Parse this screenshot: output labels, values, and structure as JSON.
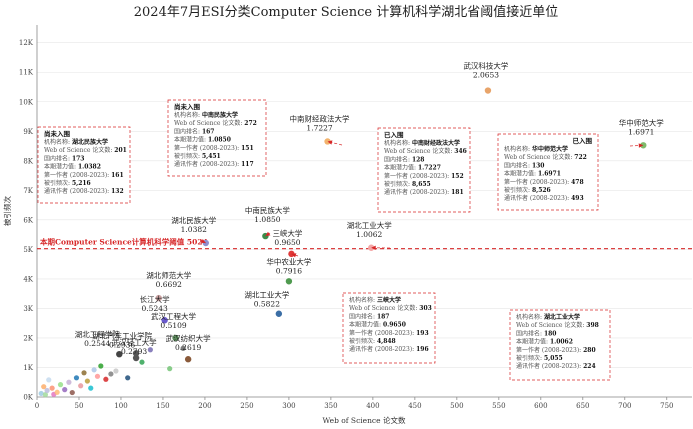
{
  "chart_data": {
    "type": "scatter",
    "title": "2024年7月ESI分类Computer Science 计算机科学湖北省阈值接近单位",
    "xlabel": "Web of Science 论文数",
    "ylabel": "被引频次",
    "xlim": [
      0,
      780
    ],
    "ylim": [
      0,
      12600
    ],
    "xticks": [
      0,
      50,
      100,
      150,
      200,
      250,
      300,
      350,
      400,
      450,
      500,
      550,
      600,
      650,
      700,
      750
    ],
    "yticks": [
      0,
      1000,
      2000,
      3000,
      4000,
      5000,
      6000,
      7000,
      8000,
      9000,
      10000,
      11000,
      12000
    ],
    "ytick_labels": [
      "0K",
      "1K",
      "2K",
      "3K",
      "4K",
      "5K",
      "6K",
      "7K",
      "8K",
      "9K",
      "10K",
      "11K",
      "12K"
    ],
    "threshold": {
      "value": 5024,
      "label": "本期Computer Science计算机科学阈值 5024"
    },
    "labeled_points": [
      {
        "name": "武汉科技大学",
        "ratio": "2.0653",
        "x": 537,
        "y": 10380,
        "color": "#e8a46a"
      },
      {
        "name": "华中师范大学",
        "ratio": "1.6971",
        "x": 722,
        "y": 8526,
        "color": "#7fba6b"
      },
      {
        "name": "中南财经政法大学",
        "ratio": "1.7227",
        "x": 346,
        "y": 8655,
        "color": "#f2b36d"
      },
      {
        "name": "中南民族大学",
        "ratio": "1.0850",
        "x": 272,
        "y": 5451,
        "color": "#3d8b4a"
      },
      {
        "name": "湖北民族大学",
        "ratio": "1.0382",
        "x": 201,
        "y": 5216,
        "color": "#8f8fcf"
      },
      {
        "name": "湖北工业大学",
        "ratio": "1.0062",
        "x": 398,
        "y": 5055,
        "color": "#f4a6a6"
      },
      {
        "name": "三峡大学",
        "ratio": "0.9650",
        "x": 303,
        "y": 4848,
        "color": "#e03a3a"
      },
      {
        "name": "华中农业大学",
        "ratio": "0.7916",
        "x": 300,
        "y": 3920,
        "color": "#4f9a4f"
      },
      {
        "name": "湖北师范大学",
        "ratio": "0.6692",
        "x": 145,
        "y": 3350,
        "color": "#c9a0a0"
      },
      {
        "name": "长江大学",
        "ratio": "0.5243",
        "x": 152,
        "y": 2600,
        "color": "#6a5acd"
      },
      {
        "name": "湖北工业大学",
        "ratio": "0.5822",
        "x": 288,
        "y": 2820,
        "color": "#3b6ea5"
      },
      {
        "name": "武汉工程大学",
        "ratio": "0.5109",
        "x": 165,
        "y": 2000,
        "color": "#5a8a5a"
      },
      {
        "name": "湖北汽车工业学院",
        "ratio": "0.2936",
        "x": 118,
        "y": 1480,
        "color": "#555555"
      },
      {
        "name": "武汉轻工大学",
        "ratio": "0.2793",
        "x": 118,
        "y": 1320,
        "color": "#555555"
      },
      {
        "name": "湖北工程学院",
        "ratio": "0.2544",
        "x": 98,
        "y": 1450,
        "color": "#444444"
      },
      {
        "name": "武汉纺织大学",
        "ratio": "0.2619",
        "x": 180,
        "y": 1280,
        "color": "#8a5a3a"
      }
    ],
    "minor_points": [
      {
        "x": 5,
        "y": 120,
        "color": "#9ecae1"
      },
      {
        "x": 8,
        "y": 350,
        "color": "#fdae6b"
      },
      {
        "x": 10,
        "y": 80,
        "color": "#a1d99b"
      },
      {
        "x": 12,
        "y": 220,
        "color": "#bcbddc"
      },
      {
        "x": 14,
        "y": 580,
        "color": "#c6dbef"
      },
      {
        "x": 18,
        "y": 300,
        "color": "#fc9272"
      },
      {
        "x": 20,
        "y": 90,
        "color": "#e377c2"
      },
      {
        "x": 24,
        "y": 160,
        "color": "#ffbb78"
      },
      {
        "x": 28,
        "y": 420,
        "color": "#98df8a"
      },
      {
        "x": 33,
        "y": 250,
        "color": "#9467bd"
      },
      {
        "x": 38,
        "y": 500,
        "color": "#c5b0d5"
      },
      {
        "x": 42,
        "y": 150,
        "color": "#8c564b"
      },
      {
        "x": 47,
        "y": 650,
        "color": "#1f77b4"
      },
      {
        "x": 52,
        "y": 380,
        "color": "#e7969c"
      },
      {
        "x": 56,
        "y": 820,
        "color": "#8c6d31"
      },
      {
        "x": 60,
        "y": 540,
        "color": "#bd9e39"
      },
      {
        "x": 64,
        "y": 300,
        "color": "#17becf"
      },
      {
        "x": 68,
        "y": 920,
        "color": "#aec7e8"
      },
      {
        "x": 72,
        "y": 700,
        "color": "#ff9896"
      },
      {
        "x": 76,
        "y": 1050,
        "color": "#2ca02c"
      },
      {
        "x": 82,
        "y": 600,
        "color": "#d62728"
      },
      {
        "x": 88,
        "y": 780,
        "color": "#7f7f7f"
      },
      {
        "x": 94,
        "y": 880,
        "color": "#c7c7c7"
      },
      {
        "x": 108,
        "y": 650,
        "color": "#1f4e79"
      },
      {
        "x": 125,
        "y": 1180,
        "color": "#31a354"
      },
      {
        "x": 135,
        "y": 1600,
        "color": "#756bb1"
      },
      {
        "x": 158,
        "y": 960,
        "color": "#74c476"
      },
      {
        "x": 174,
        "y": 1650,
        "color": "#636363"
      }
    ],
    "annotations": [
      {
        "status": "尚未入围",
        "name": "湖北民族大学",
        "papers": "201",
        "ratio": "1.0382",
        "citations": "5,216",
        "first_author": "161",
        "corresponding": "132",
        "labels": {
          "name": "机构名称: ",
          "papers": "Web of Science 论文数: ",
          "ratio": "国内排名: ",
          "potential": "本期潜力值: ",
          "first": "第一作者 (2008-2023): ",
          "cites": "被引频次: ",
          "corr": "通讯作者 (2008-2023): "
        },
        "rank": "173",
        "target": {
          "x": 201,
          "y": 5216
        }
      },
      {
        "status": "尚未入围",
        "name": "中南民族大学",
        "papers": "272",
        "ratio": "1.0850",
        "citations": "5,451",
        "first_author": "151",
        "corresponding": "117",
        "labels": {
          "name": "机构名称: ",
          "papers": "Web of Science 论文数: ",
          "ratio": "国内排名: ",
          "potential": "本期潜力值: ",
          "first": "第一作者 (2008-2023): ",
          "cites": "被引频次: ",
          "corr": "通讯作者 (2008-2023): "
        },
        "rank": "167",
        "target": {
          "x": 272,
          "y": 5451
        }
      },
      {
        "status": "已入围",
        "name": "中南财经政法大学",
        "papers": "346",
        "ratio": "1.7227",
        "citations": "8,655",
        "first_author": "152",
        "corresponding": "181",
        "labels": {
          "name": "机构名称: ",
          "papers": "Web of Science 论文数: ",
          "ratio": "国内排名: ",
          "potential": "本期潜力值: ",
          "first": "第一作者 (2008-2023): ",
          "cites": "被引频次: ",
          "corr": "通讯作者 (2008-2023): "
        },
        "rank": "128",
        "target": {
          "x": 346,
          "y": 8655
        }
      },
      {
        "status": "已入围",
        "name": "华中师范大学",
        "papers": "722",
        "ratio": "1.6971",
        "citations": "8,526",
        "first_author": "478",
        "corresponding": "493",
        "labels": {
          "name": "机构名称: ",
          "papers": "Web of Science 论文数: ",
          "ratio": "国内排名: ",
          "potential": "本期潜力值: ",
          "first": "第一作者 (2008-2023): ",
          "cites": "被引频次: ",
          "corr": "通讯作者 (2008-2023): "
        },
        "rank": "130",
        "target": {
          "x": 722,
          "y": 8526
        }
      },
      {
        "status": "",
        "name": "三峡大学",
        "papers": "303",
        "ratio": "0.9650",
        "citations": "4,848",
        "first_author": "193",
        "corresponding": "196",
        "labels": {
          "name": "机构名称: ",
          "papers": "Web of Science 论文数: ",
          "ratio": "国内排名: ",
          "potential": "本期潜力值: ",
          "first": "第一作者 (2008-2023): ",
          "cites": "被引频次: ",
          "corr": "通讯作者 (2008-2023): "
        },
        "rank": "187",
        "target": {
          "x": 303,
          "y": 4848
        }
      },
      {
        "status": "",
        "name": "湖北工业大学",
        "papers": "398",
        "ratio": "1.0062",
        "citations": "5,055",
        "first_author": "280",
        "corresponding": "224",
        "labels": {
          "name": "机构名称: ",
          "papers": "Web of Science 论文数: ",
          "ratio": "国内排名: ",
          "potential": "本期潜力值: ",
          "first": "第一作者 (2008-2023): ",
          "cites": "被引频次: ",
          "corr": "通讯作者 (2008-2023): "
        },
        "rank": "180",
        "target": {
          "x": 398,
          "y": 5055
        }
      }
    ]
  }
}
